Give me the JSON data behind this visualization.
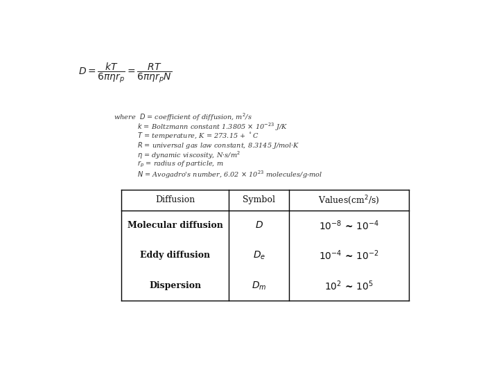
{
  "bg_color": "#ffffff",
  "formula_fontsize": 11,
  "where_fontsize": 7.5,
  "header_fontsize": 9,
  "body_col1_fontsize": 9,
  "body_col2_fontsize": 10,
  "body_col3_fontsize": 10,
  "table": {
    "col1_labels": [
      "Molecular diffusion",
      "Eddy diffusion",
      "Dispersion"
    ],
    "col2_labels": [
      "D",
      "D_e",
      "D_m"
    ],
    "col3_labels": [
      "10^{-8} ~ 10^{-4}",
      "10^{-4} ~ 10^{-2}",
      "10^{2} ~ 10^{5}"
    ],
    "header_labels": [
      "Diffusion",
      "Symbol",
      "Values(cm^2/s)"
    ]
  }
}
